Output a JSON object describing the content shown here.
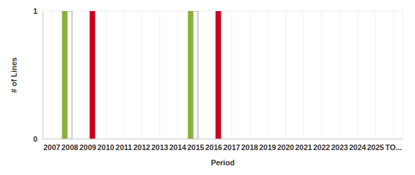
{
  "chart_data": {
    "type": "bar",
    "x_label": "Period",
    "y_label": "# of Lines",
    "categories": [
      "2007",
      "2008",
      "2009",
      "2010",
      "2011",
      "2012",
      "2013",
      "2014",
      "2015",
      "2016",
      "2017",
      "2018",
      "2019",
      "2020",
      "2021",
      "2022",
      "2023",
      "2024",
      "2025",
      "TO..."
    ],
    "series": [
      {
        "color": "#84b431",
        "values": [
          0,
          1,
          0,
          0,
          0,
          0,
          0,
          0,
          1,
          0,
          0,
          0,
          0,
          0,
          0,
          0,
          0,
          0,
          0,
          0
        ]
      },
      {
        "color": "#ffffff",
        "values": [
          0,
          1,
          0,
          0,
          0,
          0,
          0,
          0,
          1,
          0,
          0,
          0,
          0,
          0,
          0,
          0,
          0,
          0,
          0,
          0
        ]
      },
      {
        "color": "#c8001e",
        "values": [
          0,
          0,
          1,
          0,
          0,
          0,
          0,
          0,
          0,
          1,
          0,
          0,
          0,
          0,
          0,
          0,
          0,
          0,
          0,
          0
        ]
      }
    ],
    "ylim": [
      0,
      1
    ],
    "yticks": [
      0,
      1
    ],
    "grid": true
  }
}
